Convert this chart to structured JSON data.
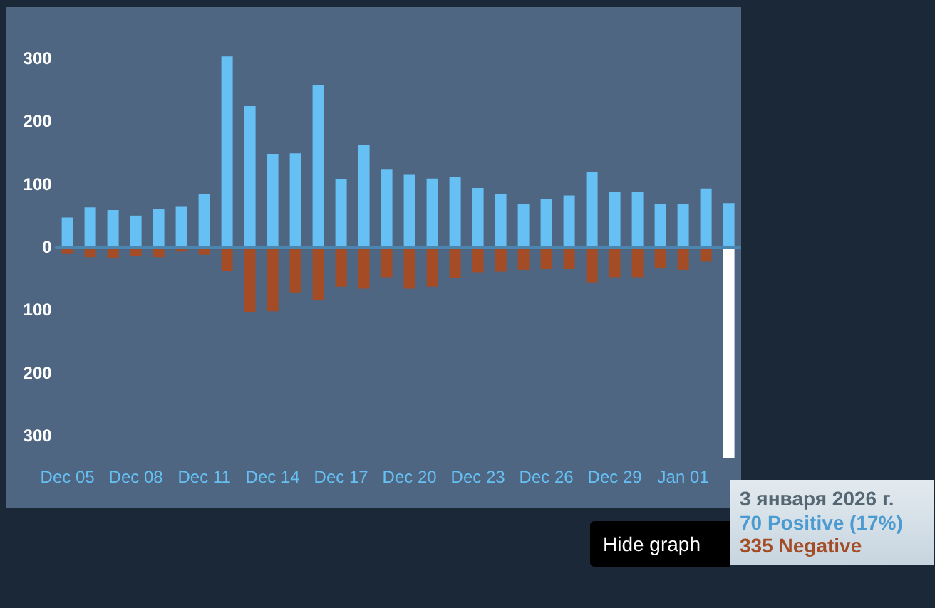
{
  "chart_data": {
    "type": "bar",
    "stacked": true,
    "categories": [
      "Dec 05",
      null,
      null,
      "Dec 08",
      null,
      null,
      "Dec 11",
      null,
      null,
      "Dec 14",
      null,
      null,
      "Dec 17",
      null,
      null,
      "Dec 20",
      null,
      null,
      "Dec 23",
      null,
      null,
      "Dec 26",
      null,
      null,
      "Dec 29",
      null,
      null,
      "Jan 01",
      null,
      null
    ],
    "series": [
      {
        "color": "#66c0f4",
        "values": [
          47,
          63,
          59,
          50,
          60,
          64,
          85,
          303,
          224,
          148,
          149,
          258,
          108,
          163,
          123,
          115,
          109,
          112,
          94,
          85,
          69,
          76,
          82,
          119,
          88,
          88,
          69,
          69,
          93,
          70
        ]
      },
      {
        "color": "#a34c25",
        "colors": [
          "#a34c25",
          "#a34c25",
          "#a34c25",
          "#a34c25",
          "#a34c25",
          "#a34c25",
          "#a34c25",
          "#a34c25",
          "#a34c25",
          "#a34c25",
          "#a34c25",
          "#a34c25",
          "#a34c25",
          "#a34c25",
          "#a34c25",
          "#a34c25",
          "#a34c25",
          "#a34c25",
          "#a34c25",
          "#a34c25",
          "#a34c25",
          "#a34c25",
          "#a34c25",
          "#a34c25",
          "#a34c25",
          "#a34c25",
          "#a34c25",
          "#a34c25",
          "#a34c25",
          "#ffffff"
        ],
        "values": [
          -11,
          -16,
          -17,
          -14,
          -16,
          -7,
          -12,
          -38,
          -103,
          -102,
          -72,
          -84,
          -63,
          -66,
          -48,
          -66,
          -63,
          -49,
          -40,
          -39,
          -36,
          -35,
          -35,
          -56,
          -48,
          -48,
          -34,
          -36,
          -23,
          -335
        ]
      }
    ],
    "ylim": [
      -340,
      310
    ],
    "yticks": [
      {
        "value": -300,
        "label": "300"
      },
      {
        "value": -200,
        "label": "200"
      },
      {
        "value": -100,
        "label": "100"
      },
      0,
      100,
      200,
      300
    ],
    "ref_lines": [
      {
        "axis": "y",
        "value": 0,
        "color": "#4a86b0"
      }
    ],
    "grid": false,
    "annotations": [
      "3 января 2026 г.",
      "70 Positive (17%)",
      "335 Negative",
      "Hide graph"
    ]
  }
}
